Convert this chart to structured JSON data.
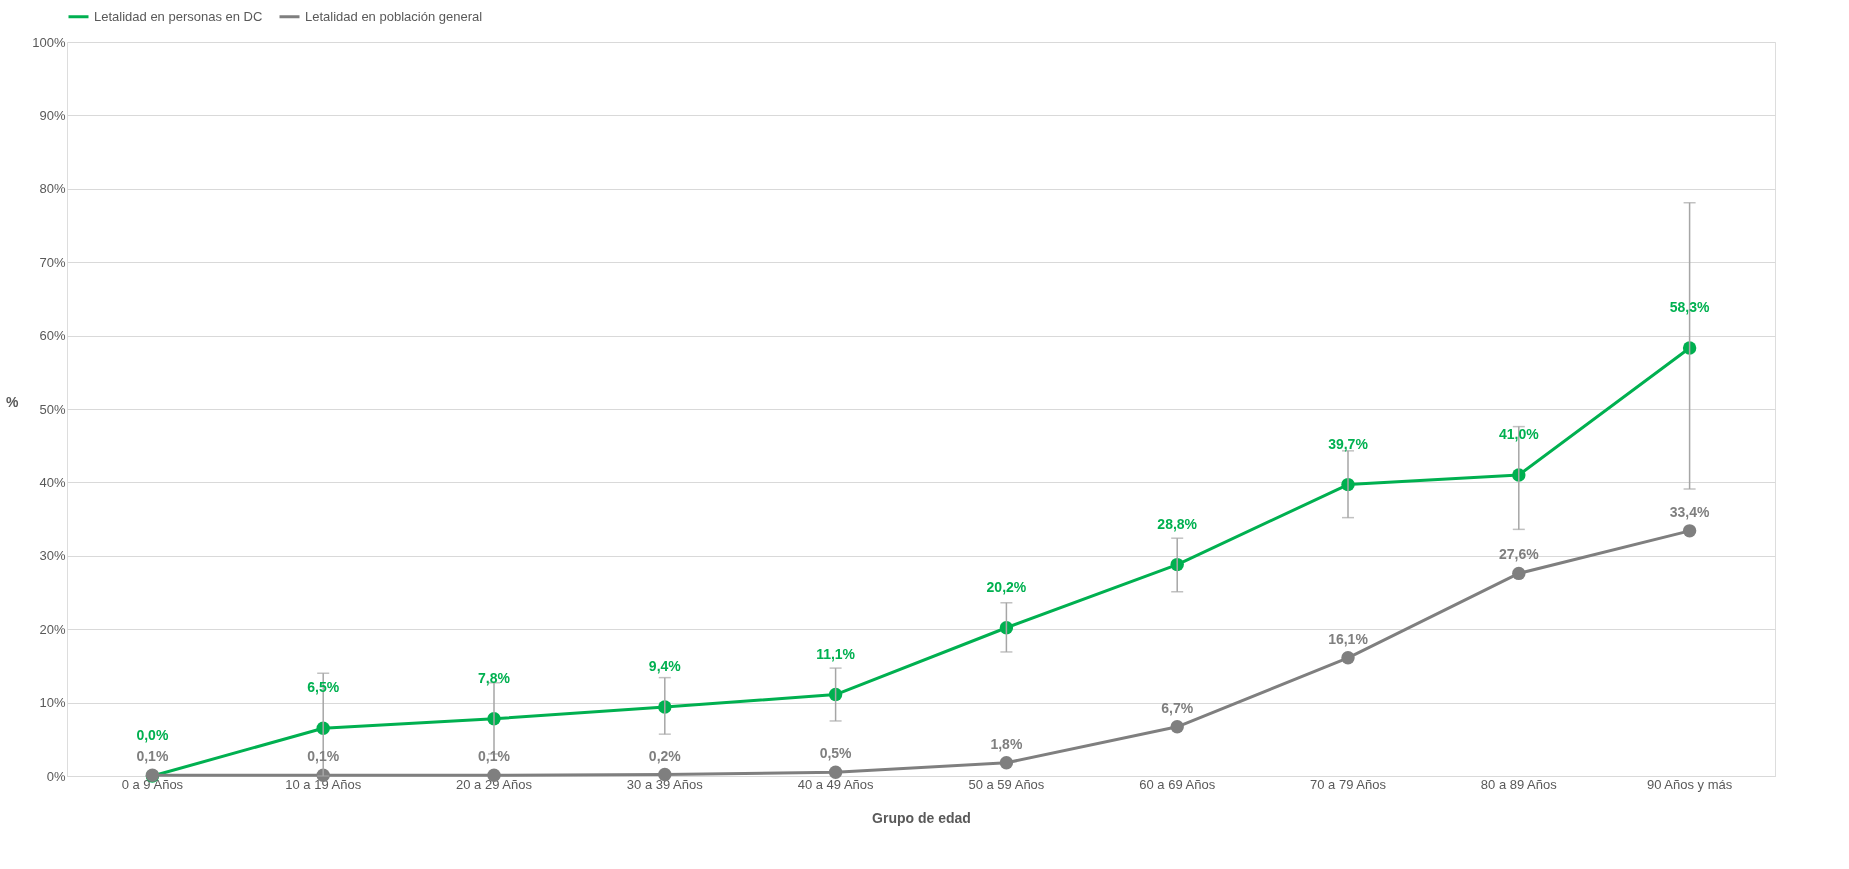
{
  "chart_data": {
    "type": "line",
    "xlabel": "Grupo de edad",
    "ylabel": "%",
    "categories": [
      "0 a 9 Años",
      "10 a 19 Años",
      "20 a 29 Años",
      "30 a 39 Años",
      "40 a 49 Años",
      "50 a 59 Años",
      "60 a 69 Años",
      "70 a 79 Años",
      "80 a 89 Años",
      "90 Años y más"
    ],
    "series": [
      {
        "name": "Letalidad en personas en DC",
        "color": "#00b050",
        "values": [
          0.0,
          6.5,
          7.8,
          9.4,
          11.1,
          20.2,
          28.8,
          39.7,
          41.0,
          58.3
        ],
        "value_labels": [
          "0,0%",
          "6,5%",
          "7,8%",
          "9,4%",
          "11,1%",
          "20,2%",
          "28,8%",
          "39,7%",
          "41,0%",
          "58,3%"
        ],
        "errors": [
          null,
          [
            0,
            14
          ],
          [
            3.0,
            12.7
          ],
          [
            5.7,
            13.4
          ],
          [
            7.5,
            14.7
          ],
          [
            16.9,
            23.6
          ],
          [
            25.1,
            32.4
          ],
          [
            35.2,
            44.3
          ],
          [
            33.6,
            47.6
          ],
          [
            39.1,
            78.1
          ]
        ]
      },
      {
        "name": "Letalidad en población general",
        "color": "#7f7f7f",
        "values": [
          0.1,
          0.1,
          0.1,
          0.2,
          0.5,
          1.8,
          6.7,
          16.1,
          27.6,
          33.4
        ],
        "value_labels": [
          "0,1%",
          "0,1%",
          "0,1%",
          "0,2%",
          "0,5%",
          "1,8%",
          "6,7%",
          "16,1%",
          "27,6%",
          "33,4%"
        ]
      }
    ],
    "ylim": [
      0,
      100
    ],
    "yticks": [
      {
        "value": 0,
        "label": "0%"
      },
      {
        "value": 10,
        "label": "10%"
      },
      {
        "value": 20,
        "label": "20%"
      },
      {
        "value": 30,
        "label": "30%"
      },
      {
        "value": 40,
        "label": "40%"
      },
      {
        "value": 50,
        "label": "50%"
      },
      {
        "value": 60,
        "label": "60%"
      },
      {
        "value": 70,
        "label": "70%"
      },
      {
        "value": 80,
        "label": "80%"
      },
      {
        "value": 90,
        "label": "90%"
      },
      {
        "value": 100,
        "label": "100%"
      }
    ],
    "grid": "y",
    "legend": "top",
    "marker": "circle",
    "line_style": "solid"
  }
}
